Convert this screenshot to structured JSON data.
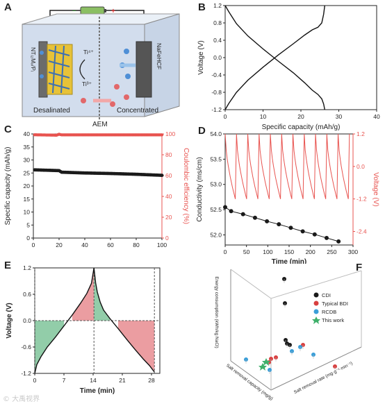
{
  "panels": {
    "A": {
      "label": "A",
      "electron_label": "e⁻",
      "minus": "–",
      "plus": "+",
      "left_electrode": "NTᵢ₂Mₓ/Pᵢ",
      "right_electrode": "NaFeHCF",
      "ion_top": "Ti⁴⁺",
      "ion_bottom": "Ti³⁺",
      "left_chamber": "Desalinated",
      "right_chamber": "Concentrated",
      "membrane": "AEM"
    },
    "B": {
      "label": "B"
    },
    "C": {
      "label": "C"
    },
    "D": {
      "label": "D"
    },
    "E": {
      "label": "E"
    },
    "F": {
      "label": "F"
    }
  },
  "chart_data": [
    {
      "id": "B",
      "type": "line",
      "xlabel": "Specific capacity (mAh/g)",
      "ylabel": "Voltage (V)",
      "xlim": [
        0,
        40
      ],
      "ylim": [
        -1.2,
        1.2
      ],
      "xticks": [
        "0",
        "10",
        "20",
        "30",
        "40"
      ],
      "yticks": [
        "-1.2",
        "-0.8",
        "-0.4",
        "0.0",
        "0.4",
        "0.8",
        "1.2"
      ],
      "series": [
        {
          "x": [
            0,
            1,
            3,
            6,
            10,
            14,
            18,
            21,
            23,
            24.5,
            25.5,
            26,
            26.3
          ],
          "y": [
            1.2,
            1.05,
            0.78,
            0.5,
            0.2,
            -0.08,
            -0.35,
            -0.58,
            -0.75,
            -0.85,
            -0.95,
            -1.07,
            -1.2
          ]
        },
        {
          "x": [
            0,
            1,
            3,
            6,
            10,
            14,
            18,
            21,
            23,
            24.5,
            25.5,
            26,
            26.3
          ],
          "y": [
            -1.2,
            -1.05,
            -0.8,
            -0.52,
            -0.22,
            0.06,
            0.32,
            0.52,
            0.64,
            0.7,
            0.8,
            1.0,
            1.2
          ]
        }
      ]
    },
    {
      "id": "C",
      "type": "scatter",
      "xlabel": "",
      "ylabel": "Specific capacity (mAh/g)",
      "y2label": "Coulombic efficiency (%)",
      "xlim": [
        0,
        100
      ],
      "ylim": [
        0,
        40
      ],
      "y2lim": [
        0,
        100
      ],
      "xticks": [
        "0",
        "20",
        "40",
        "60",
        "80",
        "100"
      ],
      "yticks": [
        "0",
        "5",
        "10",
        "15",
        "20",
        "25",
        "30",
        "35",
        "40"
      ],
      "y2ticks": [
        "0",
        "20",
        "40",
        "60",
        "80",
        "100"
      ],
      "series": [
        {
          "name": "capacity",
          "axis": "left",
          "color": "#1a1a1a",
          "x_start": 1,
          "x_end": 100,
          "capacity_points": [
            [
              1,
              26.2
            ],
            [
              20,
              25.9
            ],
            [
              22,
              25.3
            ],
            [
              40,
              25.0
            ],
            [
              60,
              24.8
            ],
            [
              80,
              24.5
            ],
            [
              100,
              24.1
            ]
          ]
        },
        {
          "name": "efficiency",
          "axis": "right",
          "color": "#e8534f",
          "x_start": 1,
          "x_end": 100,
          "efficiency_points": [
            [
              1,
              99.2
            ],
            [
              18,
              98.8
            ],
            [
              20,
              99.7
            ],
            [
              22,
              99.1
            ],
            [
              100,
              99.1
            ]
          ]
        }
      ]
    },
    {
      "id": "D",
      "type": "line",
      "xlabel": "Time (min)",
      "ylabel": "Conductivity (ms/cm)",
      "y2label": "Voltage (V)",
      "xlim": [
        0,
        300
      ],
      "ylim": [
        51.8,
        54.0
      ],
      "y2lim": [
        -2.9,
        1.2
      ],
      "xticks": [
        "0",
        "50",
        "100",
        "150",
        "200",
        "250",
        "300"
      ],
      "yticks": [
        "52.0",
        "52.5",
        "53.0",
        "53.5",
        "54.0"
      ],
      "y2ticks": [
        "-2.4",
        "-1.2",
        "0.0",
        "1.2"
      ],
      "conductivity": {
        "x": [
          0,
          14,
          42,
          70,
          98,
          126,
          154,
          182,
          210,
          238,
          266
        ],
        "y": [
          52.55,
          52.47,
          52.41,
          52.34,
          52.27,
          52.21,
          52.14,
          52.07,
          52.01,
          51.94,
          51.87
        ]
      },
      "voltage": {
        "cycles": 11,
        "period_min": 26.5,
        "vmax": 1.2,
        "vmin": -1.2
      }
    },
    {
      "id": "E",
      "type": "area",
      "xlabel": "Time (min)",
      "ylabel": "Voltage (V)",
      "xlim": [
        0,
        30
      ],
      "ylim": [
        -1.2,
        1.2
      ],
      "xticks": [
        "0",
        "7",
        "14",
        "21",
        "28"
      ],
      "yticks": [
        "-1.2",
        "-0.6",
        "0.0",
        "0.6",
        "1.2"
      ],
      "curve": {
        "x": [
          0,
          0.5,
          1.5,
          3,
          5,
          7,
          9,
          11,
          12.5,
          13.6,
          14.2,
          14.6,
          15,
          15.7,
          16.5,
          18,
          20,
          22,
          24,
          26,
          27.5,
          28.7
        ],
        "y": [
          -1.2,
          -1.0,
          -0.82,
          -0.6,
          -0.37,
          -0.12,
          0.13,
          0.4,
          0.62,
          0.85,
          1.2,
          0.86,
          0.65,
          0.42,
          0.24,
          0.05,
          -0.18,
          -0.42,
          -0.65,
          -0.87,
          -1.02,
          -1.17
        ]
      },
      "fills": [
        {
          "color": "#7fc49a",
          "region": "below-zero-charge"
        },
        {
          "color": "#e88c91",
          "region": "above-zero-charge"
        },
        {
          "color": "#7fc49a",
          "region": "above-zero-discharge"
        },
        {
          "color": "#e88c91",
          "region": "below-zero-discharge"
        }
      ],
      "dashed_lines_x": [
        0,
        14.2,
        28.7
      ]
    },
    {
      "id": "F",
      "type": "scatter",
      "xlabel": "Salt removal capacity (mg/g)",
      "ylabel": "Salt removal rate (mg·g⁻¹·min⁻¹)",
      "zlabel": "Energy consumption (kWh/kg NaCl)",
      "legend": [
        {
          "name": "CDI",
          "color": "#1a1a1a"
        },
        {
          "name": "Typical BDI",
          "color": "#d84040"
        },
        {
          "name": "RCDB",
          "color": "#3a9ed8"
        },
        {
          "name": "This work",
          "color": "#3fb06a"
        }
      ]
    }
  ]
}
